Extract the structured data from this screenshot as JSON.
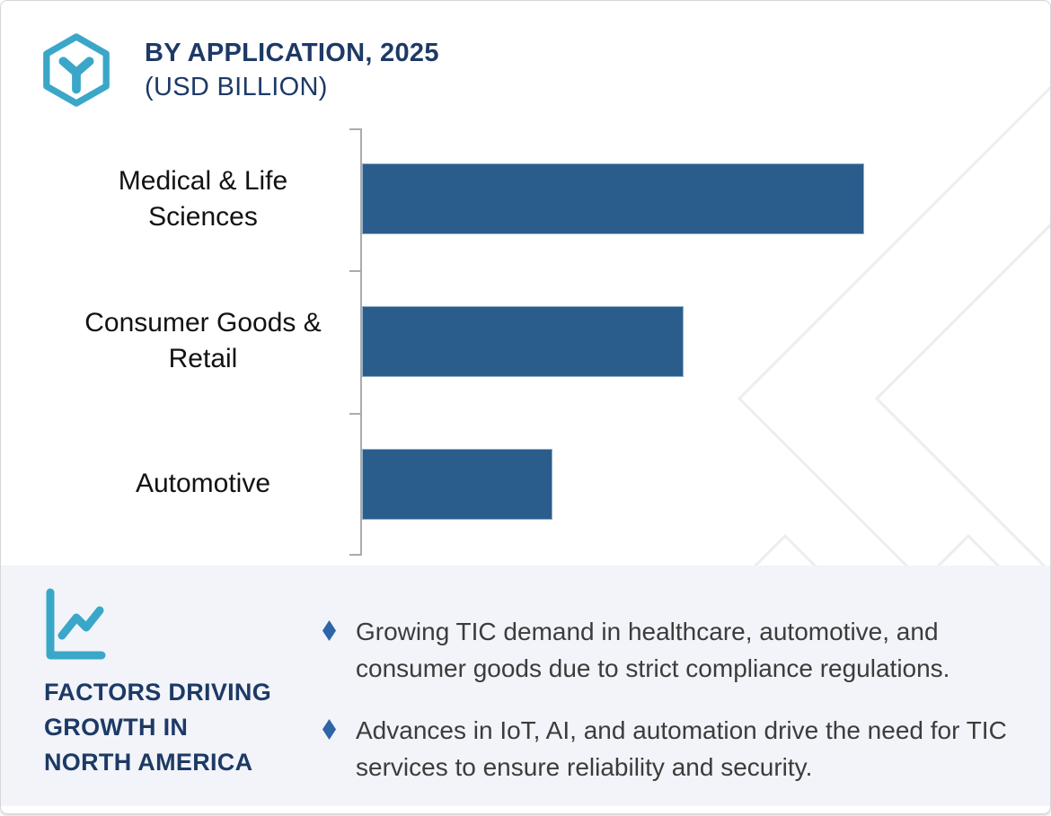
{
  "header": {
    "title": "BY APPLICATION, 2025",
    "subtitle": "(USD BILLION)",
    "logo_icon": "hexagon-cube-icon",
    "accent_teal": "#3AA7C9",
    "navy_text": "#1D3A66"
  },
  "chart_data": {
    "type": "bar",
    "orientation": "horizontal",
    "title": "BY APPLICATION, 2025",
    "subtitle": "(USD BILLION)",
    "categories": [
      "Medical & Life Sciences",
      "Consumer Goods & Retail",
      "Automotive"
    ],
    "values": [
      100,
      64,
      38
    ],
    "units": "relative length, % of longest bar (value axis unlabeled; USD Billion implied)",
    "bar_color": "#2B5D8C",
    "category_axis_color": "#ABABAB",
    "value_axis_visible": false,
    "gridlines": false,
    "legend": "none",
    "data_labels": "none"
  },
  "panel": {
    "icon": "line-chart-icon",
    "heading": "FACTORS DRIVING\nGROWTH IN\nNORTH AMERICA",
    "bullet_marker": "diamond",
    "bullet_marker_color": "#2E64A8",
    "bullets": [
      "Growing TIC demand in healthcare, automotive, and consumer goods due to strict compliance regulations.",
      "Advances in IoT, AI, and automation drive the need for TIC services to ensure reliability and security."
    ],
    "background_color": "#F2F4F9"
  },
  "decor": {
    "watermark_color": "#EDEDED"
  }
}
